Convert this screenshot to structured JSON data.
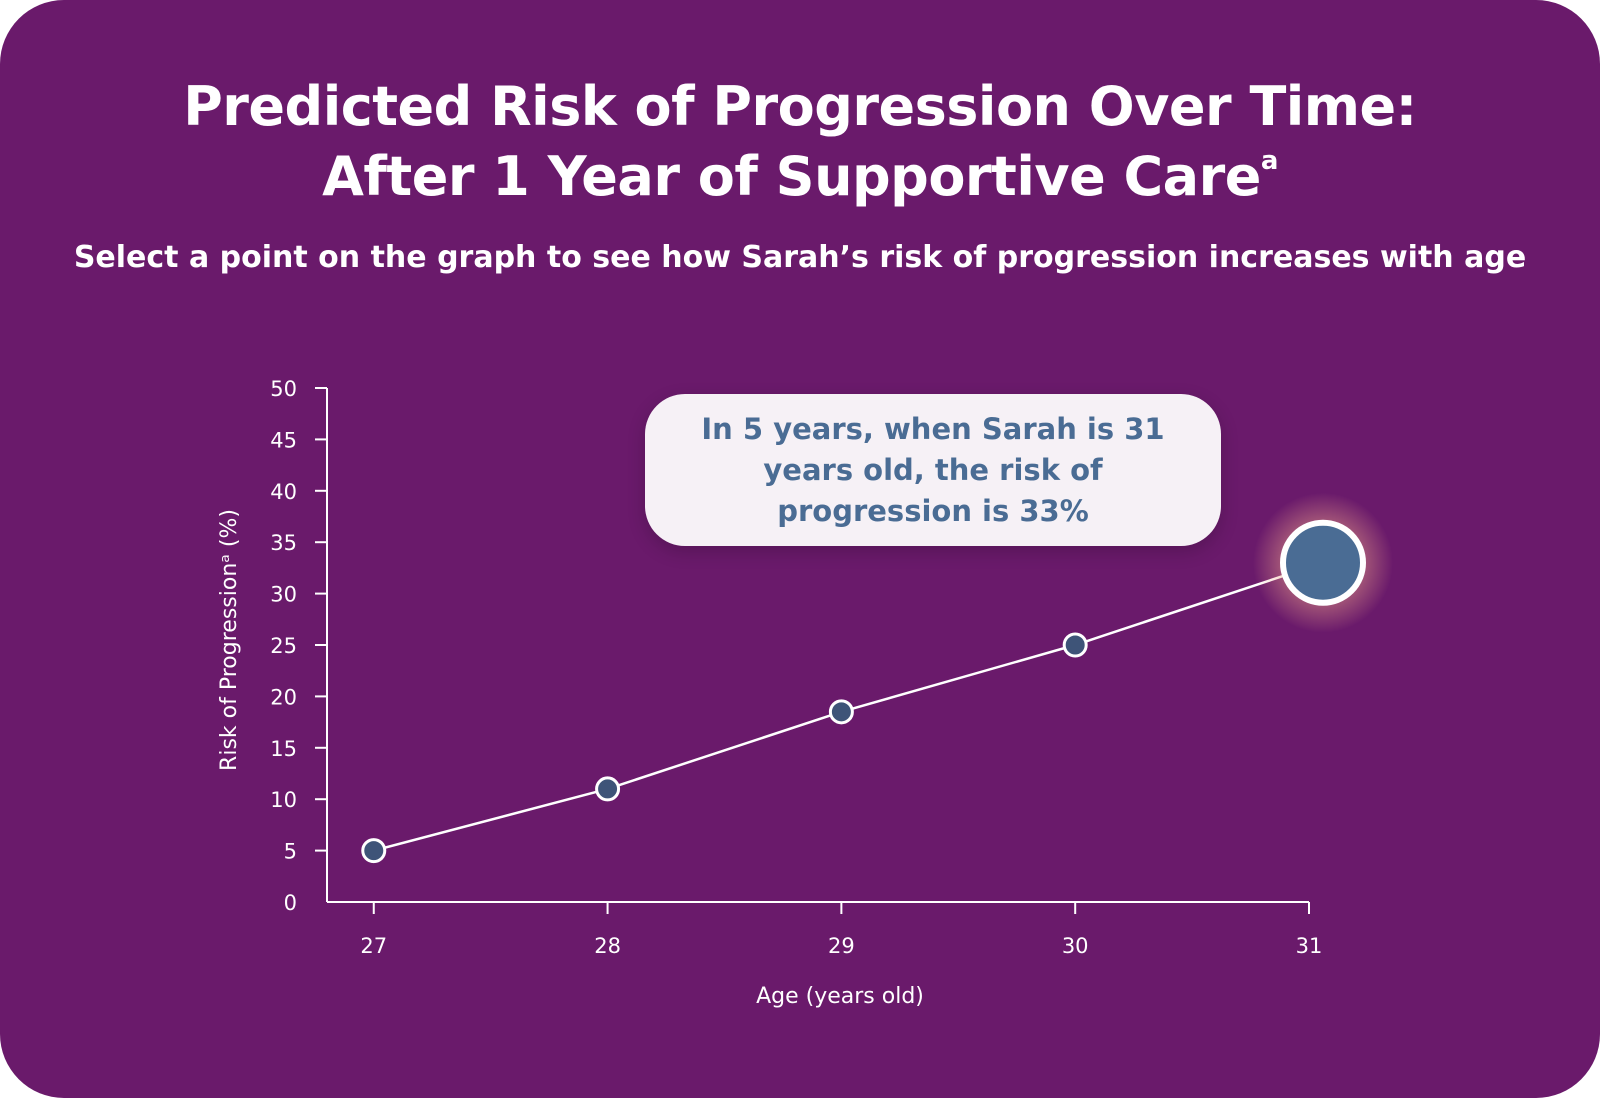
{
  "header": {
    "title_line1": "Predicted Risk of Progression Over Time:",
    "title_line2": "After 1 Year of Supportive Care",
    "title_footnote": "a",
    "subtitle": "Select a point on the graph to see how Sarah’s risk of progression increases with age"
  },
  "callout": {
    "text": "In 5 years, when Sarah is 31 years old, the risk of progression is 33%"
  },
  "colors": {
    "background": "#6a1a6b",
    "point_fill": "#3e5478",
    "selected_point_fill": "#4a6c94",
    "line": "#ffffff",
    "callout_background": "#f6f1f6",
    "callout_text": "#4a6c94"
  },
  "chart_data": {
    "type": "line",
    "title": "Predicted Risk of Progression Over Time: After 1 Year of Supportive Care",
    "xlabel": "Age (years old)",
    "ylabel": "Risk of Progressionᵃ (%)",
    "x": [
      27,
      28,
      29,
      30,
      31
    ],
    "y": [
      5,
      11,
      18.5,
      25,
      33
    ],
    "xticks": [
      "27",
      "28",
      "29",
      "30",
      "31"
    ],
    "yticks": [
      "0",
      "5",
      "10",
      "15",
      "20",
      "25",
      "30",
      "35",
      "40",
      "45",
      "50"
    ],
    "xlim": [
      26.8,
      31
    ],
    "ylim": [
      0,
      50
    ],
    "selected_x": 31,
    "grid": false,
    "legend": "none"
  }
}
